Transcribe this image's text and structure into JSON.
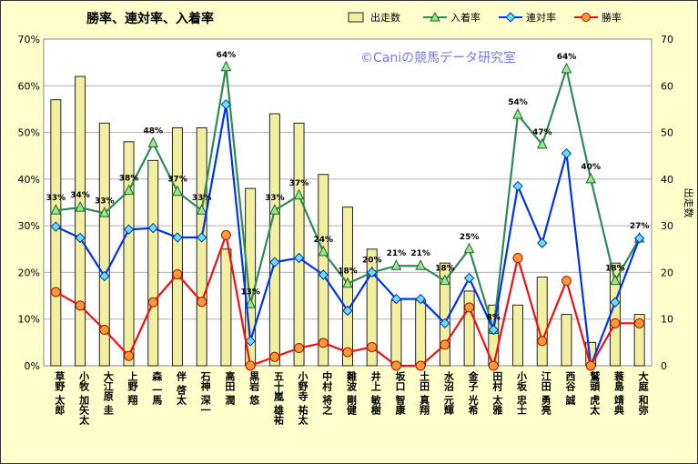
{
  "chart_data": {
    "type": "bar",
    "title": "勝率、連対率、入着率",
    "watermark": "©Caniの競馬データ研究室",
    "y_left_ticks": [
      "0%",
      "10%",
      "20%",
      "30%",
      "40%",
      "50%",
      "60%",
      "70%"
    ],
    "y_left_range": [
      0,
      70
    ],
    "y_right_ticks": [
      "0",
      "10",
      "20",
      "30",
      "40",
      "50",
      "60",
      "70"
    ],
    "y_right_range": [
      0,
      70
    ],
    "y_right_label": "出走数",
    "categories": [
      "草野 太郎",
      "小牧 加矢太",
      "大江原 圭",
      "上野 翔",
      "森 一馬",
      "伴 啓太",
      "石神 深一",
      "高田 潤",
      "黒岩 悠",
      "五十嵐 雄祐",
      "小野寺 祐太",
      "中村 将之",
      "難波 剛健",
      "井上 敏樹",
      "坂口 智康",
      "土田 真翔",
      "水沼 元輝",
      "金子 光希",
      "田村 太雅",
      "小坂 忠士",
      "江田 勇亮",
      "西谷 誠",
      "鷲頭 虎太",
      "蓑島 靖典",
      "大庭 和弥"
    ],
    "legend_position": "top-right",
    "legend": [
      "出走数",
      "入着率",
      "連対率",
      "勝率"
    ],
    "colors": {
      "bar": "#f2f0a0",
      "place": "#2e8b57",
      "quinella": "#0033ee",
      "win": "#ee1111"
    },
    "series": [
      {
        "name": "出走数",
        "axis": "right",
        "values": [
          57,
          62,
          52,
          48,
          44,
          51,
          51,
          25,
          38,
          54,
          52,
          41,
          34,
          25,
          14,
          14,
          22,
          16,
          13,
          13,
          19,
          11,
          5,
          22,
          11
        ]
      },
      {
        "name": "入着率",
        "axis": "left",
        "values": [
          33.3,
          33.9,
          32.7,
          37.5,
          47.7,
          37.3,
          33.3,
          64,
          13.2,
          33.3,
          36.5,
          24.4,
          17.6,
          20,
          21.4,
          21.4,
          18.2,
          25,
          7.7,
          53.8,
          47.4,
          63.6,
          40,
          18.2,
          27.3
        ]
      },
      {
        "name": "連対率",
        "axis": "left",
        "values": [
          29.8,
          27.4,
          19.2,
          29.2,
          29.5,
          27.5,
          27.5,
          56,
          5.3,
          22.2,
          23.1,
          19.5,
          11.8,
          20,
          14.3,
          14.3,
          9.1,
          18.8,
          7.7,
          38.5,
          26.3,
          45.5,
          0,
          13.6,
          27.3
        ]
      },
      {
        "name": "勝率",
        "axis": "left",
        "values": [
          15.8,
          12.9,
          7.7,
          2.1,
          13.6,
          19.6,
          13.7,
          28,
          0,
          1.9,
          3.8,
          4.9,
          2.9,
          4,
          0,
          0,
          4.5,
          12.5,
          0,
          23.1,
          5.3,
          18.2,
          0,
          9.1,
          9.1
        ]
      }
    ],
    "place_labels": [
      "33%",
      "34%",
      "33%",
      "38%",
      "48%",
      "37%",
      "33%",
      "64%",
      "13%",
      "33%",
      "37%",
      "24%",
      "18%",
      "20%",
      "21%",
      "21%",
      "18%",
      "25%",
      "8%",
      "54%",
      "47%",
      "64%",
      "40%",
      "18%",
      "27%"
    ]
  }
}
